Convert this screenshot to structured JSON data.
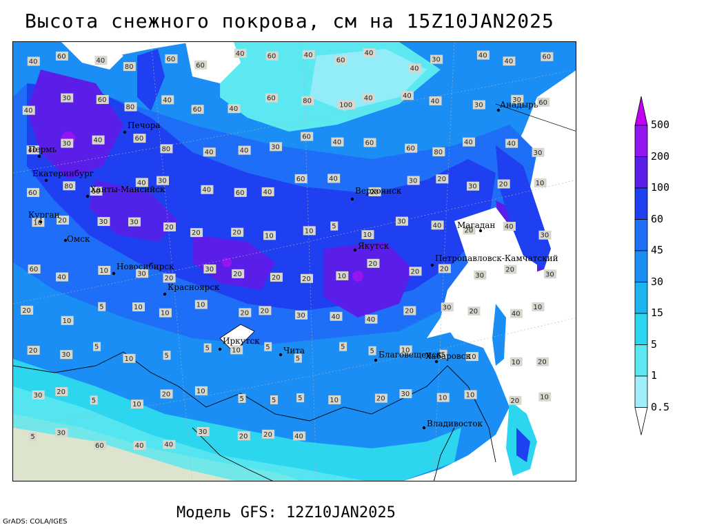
{
  "title": "Высота снежного покрова, см на 15Z10JAN2025",
  "subtitle": "Модель GFS: 12Z10JAN2025",
  "credit": "GrADS: COLA/IGES",
  "colors": {
    "land_bare": "#e8e3cb",
    "ocean": "#ffffff",
    "c0_5": "#a0eefa",
    "c1": "#5ce8f0",
    "c5": "#2cd6ee",
    "c15": "#1ab4f0",
    "c30": "#1a8ef5",
    "c45": "#1f6ef7",
    "c60": "#1e40f0",
    "c100": "#5a1ee8",
    "c200": "#9316f0",
    "c500": "#c000f0"
  },
  "legend": {
    "levels": [
      "500",
      "200",
      "100",
      "60",
      "45",
      "30",
      "15",
      "5",
      "1",
      "0.5"
    ]
  },
  "cities": [
    {
      "name": "Анадырь"
    },
    {
      "name": "Печора"
    },
    {
      "name": "Пермь"
    },
    {
      "name": "Екатеринбург"
    },
    {
      "name": "Ханты-Мансийск"
    },
    {
      "name": "Курган"
    },
    {
      "name": "Омск"
    },
    {
      "name": "Новосибирск"
    },
    {
      "name": "Красноярск"
    },
    {
      "name": "Верхоянск"
    },
    {
      "name": "Магадан"
    },
    {
      "name": "Якутск"
    },
    {
      "name": "Петропавловск-Камчатский"
    },
    {
      "name": "Иркутск"
    },
    {
      "name": "Чита"
    },
    {
      "name": "Благовещенск"
    },
    {
      "name": "Хабаровск"
    },
    {
      "name": "Владивосток"
    }
  ],
  "contour_labels": [
    "40",
    "60",
    "40",
    "80",
    "60",
    "60",
    "40",
    "60",
    "40",
    "60",
    "40",
    "40",
    "30",
    "40",
    "40",
    "60",
    "40",
    "30",
    "60",
    "80",
    "40",
    "60",
    "40",
    "60",
    "80",
    "100",
    "40",
    "40",
    "40",
    "30",
    "30",
    "60",
    "40",
    "30",
    "40",
    "60",
    "80",
    "40",
    "40",
    "30",
    "60",
    "40",
    "60",
    "60",
    "80",
    "40",
    "40",
    "30",
    "60",
    "80",
    "60",
    "40",
    "30",
    "40",
    "60",
    "40",
    "60",
    "40",
    "20",
    "30",
    "20",
    "30",
    "20",
    "10",
    "10",
    "20",
    "30",
    "30",
    "20",
    "20",
    "20",
    "10",
    "10",
    "5",
    "10",
    "30",
    "40",
    "20",
    "40",
    "30",
    "60",
    "40",
    "10",
    "30",
    "20",
    "30",
    "20",
    "20",
    "20",
    "10",
    "20",
    "20",
    "20",
    "30",
    "20",
    "30",
    "20",
    "10",
    "5",
    "10",
    "10",
    "10",
    "20",
    "20",
    "30",
    "40",
    "40",
    "20",
    "30",
    "20",
    "40",
    "10",
    "20",
    "30",
    "5",
    "10",
    "5",
    "5",
    "10",
    "5",
    "5",
    "5",
    "5",
    "10",
    "5",
    "10",
    "10",
    "20",
    "30",
    "20",
    "5",
    "10",
    "20",
    "10",
    "5",
    "5",
    "5",
    "10",
    "20",
    "30",
    "10",
    "10",
    "20",
    "10",
    "5",
    "30",
    "60",
    "40",
    "40",
    "30",
    "20",
    "20",
    "40"
  ]
}
